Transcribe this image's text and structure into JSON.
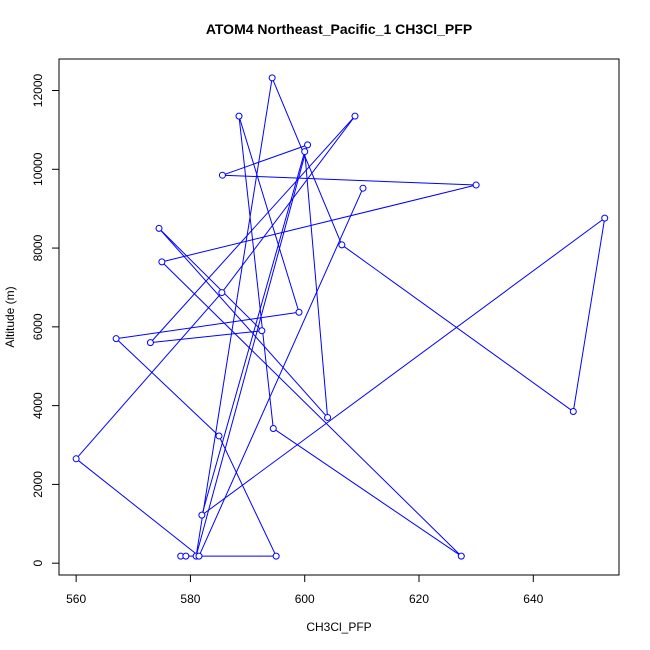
{
  "chart_data": {
    "type": "line",
    "title": "ATOM4 Northeast_Pacific_1 CH3Cl_PFP",
    "xlabel": "CH3Cl_PFP",
    "ylabel": "Altitude (m)",
    "xlim": [
      557,
      655
    ],
    "ylim": [
      -300,
      12800
    ],
    "xticks": [
      560,
      580,
      600,
      620,
      640
    ],
    "yticks": [
      0,
      2000,
      4000,
      6000,
      8000,
      10000,
      12000
    ],
    "color": "#0000ff",
    "markers": "open-circle",
    "series": [
      {
        "x": [
          578.3,
          579.2,
          595.0,
          585.0,
          567.0,
          599.0,
          588.5,
          594.5,
          627.4,
          575.0,
          630.0,
          585.6,
          600.5,
          581.0,
          594.3,
          606.5,
          647.0,
          652.5,
          582.0,
          600.0,
          604.0,
          574.5,
          592.5,
          573.0,
          608.8,
          585.5,
          560.0,
          581.5,
          610.2
        ],
        "y": [
          180,
          180,
          180,
          3230,
          5700,
          6370,
          11350,
          3420,
          180,
          7650,
          9600,
          9850,
          10620,
          180,
          12320,
          8080,
          3850,
          8760,
          1220,
          10450,
          3700,
          8500,
          5900,
          5600,
          11350,
          6870,
          2650,
          180,
          9520
        ]
      }
    ]
  }
}
